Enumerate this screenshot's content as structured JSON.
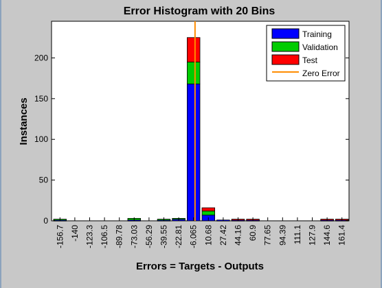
{
  "figure": {
    "background": "#c8c8c8",
    "axes_background": "#ffffff"
  },
  "chart_data": {
    "type": "bar",
    "stacked": true,
    "title": "Error Histogram with 20 Bins",
    "xlabel": "Errors = Targets - Outputs",
    "ylabel": "Instances",
    "categories": [
      "-156.7",
      "-140",
      "-123.3",
      "-106.5",
      "-89.78",
      "-73.03",
      "-56.29",
      "-39.55",
      "-22.81",
      "-6.065",
      "10.68",
      "27.42",
      "44.16",
      "60.9",
      "77.65",
      "94.39",
      "111.1",
      "127.9",
      "144.6",
      "161.4"
    ],
    "ylim": [
      0,
      245
    ],
    "yticks": [
      0,
      50,
      100,
      150,
      200
    ],
    "series": [
      {
        "name": "Training",
        "color": "#0000ff",
        "values": [
          1,
          0,
          0,
          0,
          0,
          1,
          0,
          1,
          2,
          168,
          7,
          1,
          1,
          1,
          0,
          0,
          0,
          0,
          1,
          1
        ]
      },
      {
        "name": "Validation",
        "color": "#00cc00",
        "values": [
          1,
          0,
          0,
          0,
          0,
          2,
          0,
          1,
          1,
          27,
          5,
          0,
          0,
          0,
          0,
          0,
          0,
          0,
          0,
          0
        ]
      },
      {
        "name": "Test",
        "color": "#ff0000",
        "values": [
          0,
          0,
          0,
          0,
          0,
          0,
          0,
          0,
          0,
          30,
          4,
          0,
          1,
          1,
          0,
          0,
          0,
          0,
          1,
          1
        ]
      }
    ],
    "zero_error": {
      "name": "Zero Error",
      "color": "#ff8c00",
      "x_bin_position": 10.1
    },
    "legend_position": "top-right",
    "grid": false
  }
}
